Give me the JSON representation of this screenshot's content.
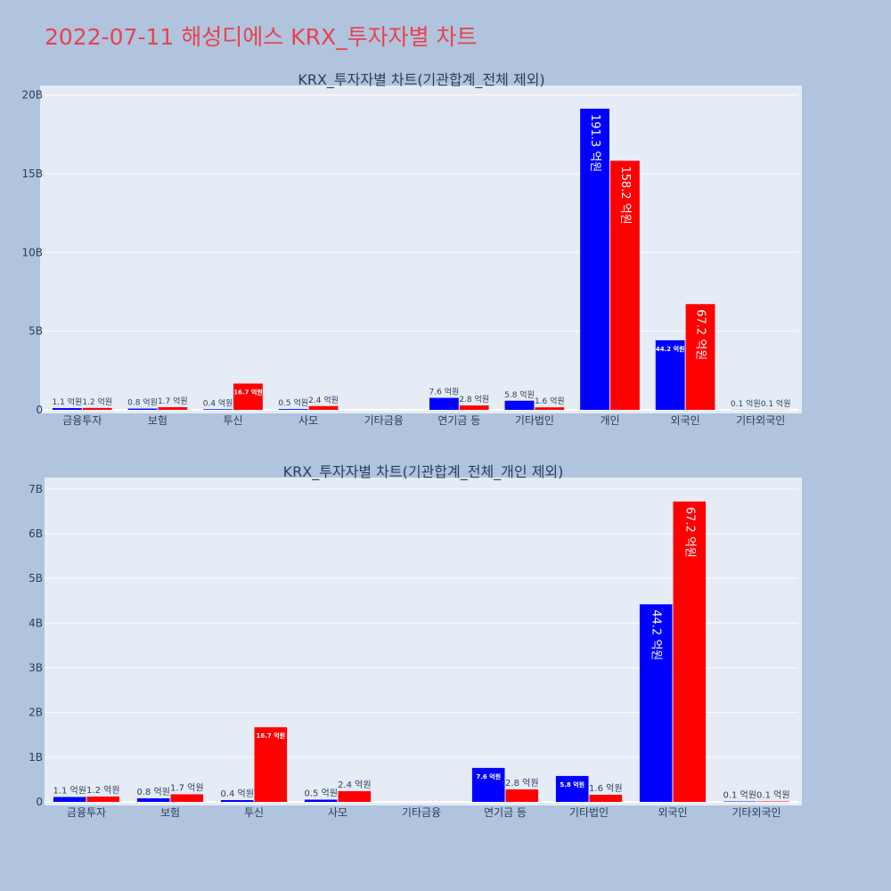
{
  "page_title": "2022-07-11 해성디에스 KRX_투자자별 차트",
  "chart_data": [
    {
      "type": "bar",
      "title": "KRX_투자자별 차트(기관합계_전체 제외)",
      "categories": [
        "금융투자",
        "보험",
        "투신",
        "사모",
        "기타금융",
        "연기금 등",
        "기타법인",
        "개인",
        "외국인",
        "기타외국인"
      ],
      "y_ticks": [
        "0",
        "5B",
        "10B",
        "15B",
        "20B"
      ],
      "ylim": [
        0,
        20.3
      ],
      "grid": true,
      "series": [
        {
          "color": "#0000ff",
          "values": [
            0.11,
            0.08,
            0.04,
            0.05,
            0,
            0.76,
            0.58,
            19.13,
            4.42,
            0.01
          ],
          "labels": [
            "1.1 억원",
            "0.8 억원",
            "0.4 억원",
            "0.5 억원",
            "",
            "7.6 억원",
            "5.8 억원",
            "191.3 억원",
            "44.2 억원",
            "0.1 억원"
          ]
        },
        {
          "color": "#ff0000",
          "values": [
            0.12,
            0.17,
            1.67,
            0.24,
            0,
            0.28,
            0.16,
            15.82,
            6.72,
            0.01
          ],
          "labels": [
            "1.2 억원",
            "1.7 억원",
            "16.7 억원",
            "2.4 억원",
            "",
            "2.8 억원",
            "1.6 억원",
            "158.2 억원",
            "67.2 억원",
            "0.1 억원"
          ]
        }
      ]
    },
    {
      "type": "bar",
      "title": "KRX_투자자별 차트(기관합계_전체_개인 제외)",
      "categories": [
        "금융투자",
        "보험",
        "투신",
        "사모",
        "기타금융",
        "연기금 등",
        "기타법인",
        "외국인",
        "기타외국인"
      ],
      "y_ticks": [
        "0",
        "1B",
        "2B",
        "3B",
        "4B",
        "5B",
        "6B",
        "7B"
      ],
      "ylim": [
        0,
        7.1
      ],
      "grid": true,
      "series": [
        {
          "color": "#0000ff",
          "values": [
            0.11,
            0.08,
            0.04,
            0.05,
            0,
            0.76,
            0.58,
            4.42,
            0.01
          ],
          "labels": [
            "1.1 억원",
            "0.8 억원",
            "0.4 억원",
            "0.5 억원",
            "",
            "7.6 억원",
            "5.8 억원",
            "44.2 억원",
            "0.1 억원"
          ]
        },
        {
          "color": "#ff0000",
          "values": [
            0.12,
            0.17,
            1.67,
            0.24,
            0,
            0.28,
            0.16,
            6.72,
            0.01
          ],
          "labels": [
            "1.2 억원",
            "1.7 억원",
            "16.7 억원",
            "2.4 억원",
            "",
            "2.8 억원",
            "1.6 억원",
            "67.2 억원",
            "0.1 억원"
          ]
        }
      ]
    }
  ]
}
